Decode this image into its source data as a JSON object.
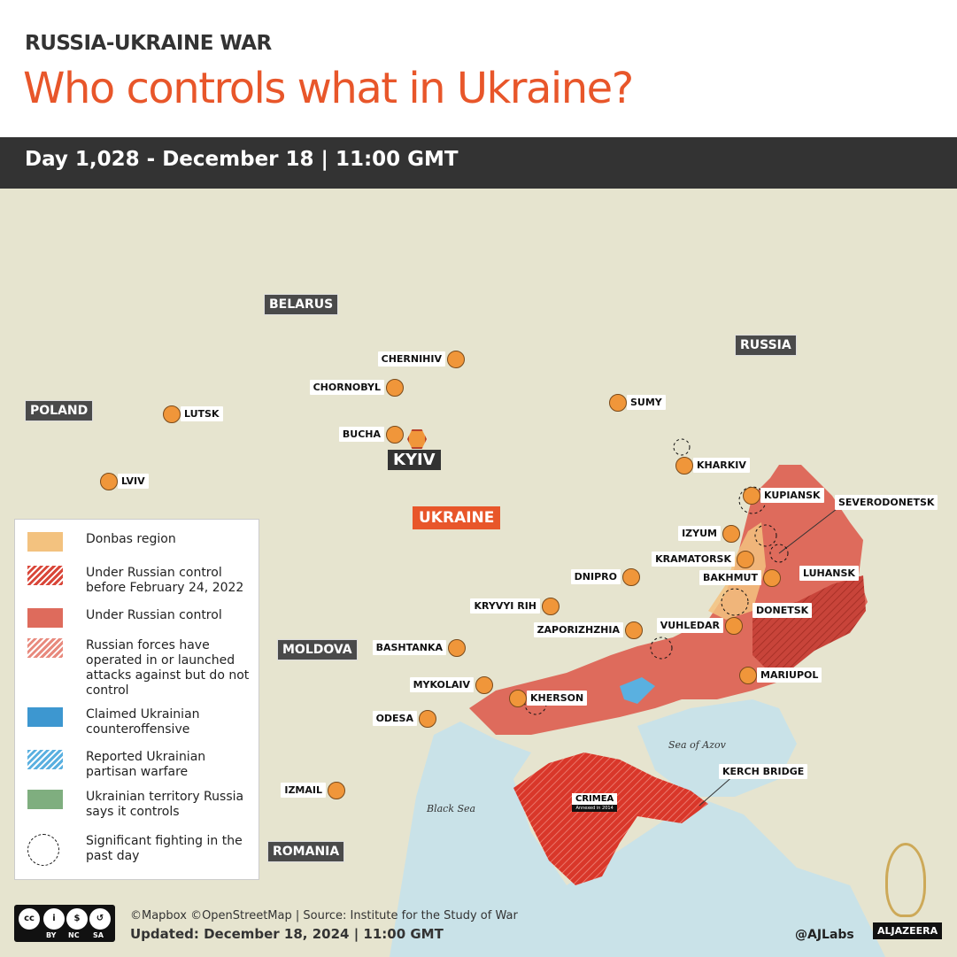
{
  "header": {
    "kicker": "RUSSIA-UKRAINE WAR",
    "title": "Who controls what in Ukraine?",
    "dateline": "Day 1,028 - December 18  |  11:00 GMT"
  },
  "countries": {
    "belarus": "BELARUS",
    "russia": "RUSSIA",
    "poland": "POLAND",
    "moldova": "MOLDOVA",
    "romania": "ROMANIA",
    "ukraine": "UKRAINE"
  },
  "capital": "KYIV",
  "cities": [
    "CHERNIHIV",
    "CHORNOBYL",
    "SUMY",
    "LUTSK",
    "BUCHA",
    "KHARKIV",
    "LVIV",
    "KUPIANSK",
    "IZYUM",
    "KRAMATORSK",
    "BAKHMUT",
    "DNIPRO",
    "KRYVYI RIH",
    "ZAPORIZHZHIA",
    "VUHLEDAR",
    "BASHTANKA",
    "MARIUPOL",
    "MYKOLAIV",
    "KHERSON",
    "ODESA",
    "IZMAIL"
  ],
  "region_labels": {
    "severodonetsk": "SEVERODONETSK",
    "luhansk": "LUHANSK",
    "donetsk": "DONETSK",
    "kerch": "KERCH BRIDGE",
    "crimea": "CRIMEA",
    "crimea_note": "Annexed in 2014"
  },
  "seas": {
    "azov": "Sea of Azov",
    "black": "Black Sea"
  },
  "legend": [
    {
      "label": "Donbas region",
      "color": "#f3c27f"
    },
    {
      "label": "Under Russian control before February 24, 2022",
      "color": "#d9473a"
    },
    {
      "label": "Under Russian control",
      "color": "#de6b5c"
    },
    {
      "label": "Russian forces have operated in or launched attacks against but do not control",
      "color": "#e88a7e"
    },
    {
      "label": "Claimed Ukrainian counteroffensive",
      "color": "#3d97d0"
    },
    {
      "label": "Reported Ukrainian partisan warfare",
      "color": "#5ab0e0"
    },
    {
      "label": "Ukrainian territory Russia says it controls",
      "color": "#7fae7f"
    },
    {
      "label": "Significant fighting in the past day",
      "color": "#111111"
    }
  ],
  "footer": {
    "credits": "©Mapbox ©OpenStreetMap | Source: Institute for the Study of War",
    "updated": "Updated: December 18, 2024  |  11:00 GMT",
    "handle": "@AJLabs",
    "brand": "ALJAZEERA",
    "cc": [
      "cc",
      "BY",
      "NC",
      "SA"
    ]
  }
}
